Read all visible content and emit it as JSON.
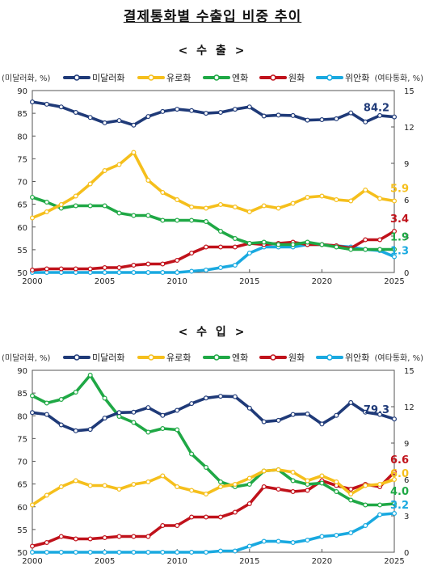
{
  "page": {
    "title": "결제통화별 수출입 비중 추이"
  },
  "chart_data": [
    {
      "type": "line",
      "title": "< 수   출 >",
      "left_axis_label": "(미달러화, %)",
      "right_axis_label": "(여타통화, %)",
      "ylim_left": [
        50,
        90
      ],
      "ylim_right": [
        0,
        15
      ],
      "y_ticks_left": [
        "50",
        "55",
        "60",
        "65",
        "70",
        "75",
        "80",
        "85",
        "90"
      ],
      "y_ticks_right": [
        "0",
        "3",
        "6",
        "9",
        "12",
        "15"
      ],
      "x_ticks": [
        "2000",
        "2005",
        "2010",
        "2015",
        "2020",
        "2025"
      ],
      "x": [
        2000,
        2001,
        2002,
        2003,
        2004,
        2005,
        2006,
        2007,
        2008,
        2009,
        2010,
        2011,
        2012,
        2013,
        2014,
        2015,
        2016,
        2017,
        2018,
        2019,
        2020,
        2021,
        2022,
        2023,
        2024,
        2025
      ],
      "series": [
        {
          "name": "미달러화",
          "axis": "left",
          "color": "#1f3a78",
          "values": [
            87.5,
            87.0,
            86.4,
            85.2,
            84.1,
            82.9,
            83.4,
            82.4,
            84.3,
            85.4,
            85.9,
            85.6,
            85.0,
            85.2,
            85.9,
            86.4,
            84.4,
            84.6,
            84.5,
            83.5,
            83.6,
            83.8,
            85.1,
            83.1,
            84.5,
            84.2
          ],
          "end_label": "84.2",
          "label_color": "#1f3a78"
        },
        {
          "name": "유로화",
          "axis": "right",
          "color": "#f5bf1c",
          "values": [
            4.5,
            5.0,
            5.6,
            6.3,
            7.3,
            8.4,
            8.9,
            9.9,
            7.6,
            6.6,
            6.0,
            5.4,
            5.3,
            5.6,
            5.4,
            5.0,
            5.5,
            5.3,
            5.7,
            6.2,
            6.3,
            6.0,
            5.9,
            6.8,
            6.1,
            5.9
          ],
          "end_label": "5.9",
          "label_color": "#f5bf1c"
        },
        {
          "name": "엔화",
          "axis": "right",
          "color": "#1fa845",
          "values": [
            6.2,
            5.8,
            5.3,
            5.5,
            5.5,
            5.5,
            4.9,
            4.7,
            4.7,
            4.3,
            4.3,
            4.3,
            4.2,
            3.4,
            2.8,
            2.4,
            2.5,
            2.3,
            2.3,
            2.5,
            2.3,
            2.1,
            1.9,
            1.9,
            1.9,
            1.9
          ],
          "end_label": "1.9",
          "label_color": "#1fa845"
        },
        {
          "name": "원화",
          "axis": "right",
          "color": "#c0121b",
          "values": [
            0.2,
            0.3,
            0.3,
            0.3,
            0.3,
            0.4,
            0.4,
            0.6,
            0.7,
            0.7,
            1.0,
            1.6,
            2.1,
            2.1,
            2.1,
            2.4,
            2.3,
            2.4,
            2.5,
            2.3,
            2.3,
            2.2,
            2.0,
            2.7,
            2.7,
            3.4
          ],
          "end_label": "3.4",
          "label_color": "#c0121b"
        },
        {
          "name": "위안화",
          "axis": "right",
          "color": "#19a9e0",
          "values": [
            0.0,
            0.0,
            0.0,
            0.0,
            0.0,
            0.0,
            0.0,
            0.0,
            0.0,
            0.0,
            0.0,
            0.1,
            0.2,
            0.4,
            0.6,
            1.6,
            2.1,
            2.1,
            2.1,
            2.3,
            2.3,
            2.2,
            2.1,
            1.9,
            1.8,
            1.3
          ],
          "end_label": "1.3",
          "label_color": "#19a9e0"
        }
      ]
    },
    {
      "type": "line",
      "title": "< 수   입 >",
      "left_axis_label": "(미달러화, %)",
      "right_axis_label": "(여타통화, %)",
      "ylim_left": [
        50,
        90
      ],
      "ylim_right": [
        0,
        15
      ],
      "y_ticks_left": [
        "50",
        "55",
        "60",
        "65",
        "70",
        "75",
        "80",
        "85",
        "90"
      ],
      "y_ticks_right": [
        "0",
        "3",
        "6",
        "9",
        "12",
        "15"
      ],
      "x_ticks": [
        "2000",
        "2005",
        "2010",
        "2015",
        "2020",
        "2025"
      ],
      "x": [
        2000,
        2001,
        2002,
        2003,
        2004,
        2005,
        2006,
        2007,
        2008,
        2009,
        2010,
        2011,
        2012,
        2013,
        2014,
        2015,
        2016,
        2017,
        2018,
        2019,
        2020,
        2021,
        2022,
        2023,
        2024,
        2025
      ],
      "series": [
        {
          "name": "미달러화",
          "axis": "left",
          "color": "#1f3a78",
          "values": [
            80.7,
            80.3,
            78.0,
            76.7,
            77.0,
            79.5,
            80.7,
            80.8,
            81.8,
            80.1,
            81.2,
            82.7,
            83.9,
            84.3,
            84.2,
            81.7,
            78.7,
            79.0,
            80.3,
            80.4,
            78.2,
            80.1,
            82.9,
            80.8,
            80.3,
            79.3
          ],
          "end_label": "79.3",
          "label_color": "#1f3a78"
        },
        {
          "name": "유로화",
          "axis": "right",
          "color": "#f5bf1c",
          "values": [
            3.9,
            4.7,
            5.4,
            5.9,
            5.5,
            5.5,
            5.2,
            5.6,
            5.8,
            6.3,
            5.4,
            5.1,
            4.8,
            5.4,
            5.6,
            6.1,
            6.7,
            6.8,
            6.6,
            5.9,
            6.3,
            5.8,
            4.8,
            5.5,
            5.6,
            6.0
          ],
          "end_label": "6.0",
          "label_color": "#f5bf1c"
        },
        {
          "name": "엔화",
          "axis": "right",
          "color": "#1fa845",
          "values": [
            12.9,
            12.3,
            12.6,
            13.2,
            14.6,
            12.7,
            11.2,
            10.7,
            9.9,
            10.2,
            10.1,
            8.1,
            7.0,
            5.8,
            5.4,
            5.6,
            6.7,
            6.8,
            5.9,
            5.6,
            5.7,
            5.0,
            4.3,
            3.9,
            3.9,
            4.0
          ],
          "end_label": "4.0",
          "label_color": "#1fa845"
        },
        {
          "name": "원화",
          "axis": "right",
          "color": "#c0121b",
          "values": [
            0.5,
            0.8,
            1.3,
            1.1,
            1.1,
            1.2,
            1.3,
            1.3,
            1.3,
            2.2,
            2.2,
            2.9,
            2.9,
            2.9,
            3.3,
            4.0,
            5.4,
            5.2,
            5.0,
            5.1,
            5.9,
            5.5,
            5.2,
            5.6,
            5.4,
            6.6
          ],
          "end_label": "6.6",
          "label_color": "#c0121b"
        },
        {
          "name": "위안화",
          "axis": "right",
          "color": "#19a9e0",
          "values": [
            0.0,
            0.0,
            0.0,
            0.0,
            0.0,
            0.0,
            0.0,
            0.0,
            0.0,
            0.0,
            0.0,
            0.0,
            0.0,
            0.1,
            0.1,
            0.5,
            0.9,
            0.9,
            0.8,
            1.0,
            1.3,
            1.4,
            1.6,
            2.2,
            3.1,
            3.2
          ],
          "end_label": "3.2",
          "label_color": "#19a9e0"
        }
      ]
    }
  ]
}
